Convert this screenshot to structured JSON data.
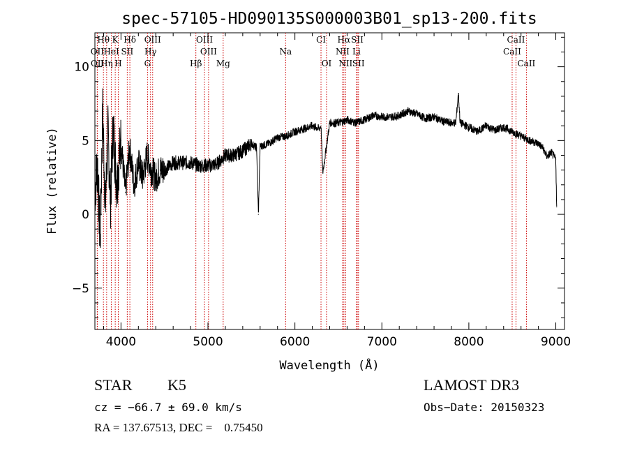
{
  "chart_data": {
    "type": "line",
    "title": "spec-57105-HD090135S000003B01_sp13-200.fits",
    "xlabel": "Wavelength (Å)",
    "ylabel": "Flux (relative)",
    "xlim": [
      3700,
      9100
    ],
    "ylim": [
      -7.8,
      12.3
    ],
    "xticks": [
      4000,
      5000,
      6000,
      7000,
      8000,
      9000
    ],
    "yticks": [
      -5,
      0,
      5,
      10
    ],
    "series": [
      {
        "name": "spectrum",
        "x": [
          3700,
          3730,
          3760,
          3790,
          3820,
          3850,
          3880,
          3910,
          3950,
          4000,
          4050,
          4100,
          4150,
          4200,
          4250,
          4300,
          4350,
          4400,
          4450,
          4500,
          4600,
          4700,
          4800,
          4900,
          5000,
          5100,
          5200,
          5300,
          5400,
          5500,
          5560,
          5580,
          5600,
          5700,
          5800,
          5900,
          6000,
          6100,
          6200,
          6280,
          6300,
          6320,
          6400,
          6500,
          6560,
          6600,
          6700,
          6800,
          6900,
          7000,
          7100,
          7200,
          7300,
          7400,
          7500,
          7600,
          7700,
          7800,
          7850,
          7880,
          7900,
          8000,
          8100,
          8200,
          8300,
          8400,
          8500,
          8600,
          8700,
          8800,
          8850,
          8900,
          8950,
          9000,
          9010
        ],
        "y": [
          1.5,
          3.5,
          -2.0,
          7.0,
          0.5,
          5.5,
          1.0,
          6.0,
          2.0,
          5.0,
          1.5,
          4.5,
          2.0,
          3.5,
          2.5,
          4.0,
          3.0,
          2.5,
          3.0,
          3.0,
          3.5,
          3.5,
          3.5,
          3.3,
          3.3,
          3.4,
          4.0,
          4.0,
          4.3,
          4.8,
          4.5,
          0.0,
          4.6,
          4.8,
          5.2,
          5.3,
          5.6,
          5.8,
          6.0,
          5.8,
          6.0,
          2.8,
          6.2,
          6.2,
          6.3,
          6.4,
          6.2,
          6.4,
          6.7,
          6.6,
          6.6,
          6.7,
          7.0,
          6.8,
          6.5,
          6.6,
          6.3,
          6.2,
          6.2,
          8.2,
          6.2,
          5.9,
          5.6,
          6.0,
          5.7,
          5.9,
          5.6,
          5.3,
          5.0,
          4.8,
          4.5,
          3.9,
          4.2,
          3.7,
          0.5
        ]
      }
    ],
    "spectral_lines": [
      {
        "label": "Hθ",
        "wavelength": 3798,
        "row": 1
      },
      {
        "label": "K",
        "wavelength": 3934,
        "row": 1
      },
      {
        "label": "Hδ",
        "wavelength": 4102,
        "row": 1
      },
      {
        "label": "OIII",
        "wavelength": 4364,
        "row": 1
      },
      {
        "label": "OIII",
        "wavelength": 4960,
        "row": 1
      },
      {
        "label": "CI",
        "wavelength": 6300,
        "row": 1
      },
      {
        "label": "Hα",
        "wavelength": 6563,
        "row": 1
      },
      {
        "label": "SII",
        "wavelength": 6717,
        "row": 1
      },
      {
        "label": "CaII",
        "wavelength": 8542,
        "row": 1
      },
      {
        "label": "OII",
        "wavelength": 3727,
        "row": 2
      },
      {
        "label": "HeI",
        "wavelength": 3889,
        "row": 2
      },
      {
        "label": "SII",
        "wavelength": 4072,
        "row": 2
      },
      {
        "label": "Hγ",
        "wavelength": 4340,
        "row": 2
      },
      {
        "label": "OIII",
        "wavelength": 5007,
        "row": 2
      },
      {
        "label": "Na",
        "wavelength": 5893,
        "row": 2
      },
      {
        "label": "NII",
        "wavelength": 6548,
        "row": 2
      },
      {
        "label": "Li",
        "wavelength": 6708,
        "row": 2
      },
      {
        "label": "CaII",
        "wavelength": 8498,
        "row": 2
      },
      {
        "label": "OII",
        "wavelength": 3729,
        "row": 3
      },
      {
        "label": "Hη",
        "wavelength": 3835,
        "row": 3
      },
      {
        "label": "H",
        "wavelength": 3969,
        "row": 3
      },
      {
        "label": "G",
        "wavelength": 4305,
        "row": 3
      },
      {
        "label": "Hβ",
        "wavelength": 4861,
        "row": 3
      },
      {
        "label": "Mg",
        "wavelength": 5175,
        "row": 3
      },
      {
        "label": "OI",
        "wavelength": 6364,
        "row": 3
      },
      {
        "label": "NII",
        "wavelength": 6583,
        "row": 3
      },
      {
        "label": "SII",
        "wavelength": 6731,
        "row": 3
      },
      {
        "label": "CaII",
        "wavelength": 8662,
        "row": 3
      }
    ]
  },
  "info": {
    "class": "STAR",
    "subclass": "K5",
    "cz": "cz = −66.7 ± 69.0 km/s",
    "radec": "RA = 137.67513, DEC =    0.75450",
    "survey": "LAMOST DR3",
    "obsdate": "Obs−Date: 20150323"
  }
}
